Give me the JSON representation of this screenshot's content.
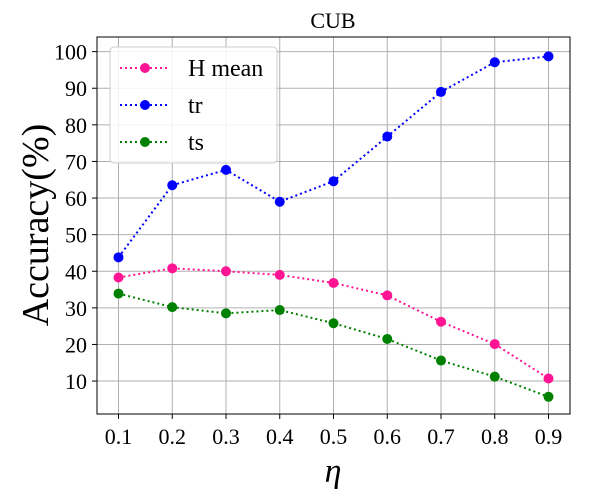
{
  "chart_data": {
    "type": "line",
    "title": "CUB",
    "xlabel": "η",
    "ylabel": "Accuracy(%)",
    "x": [
      0.1,
      0.2,
      0.3,
      0.4,
      0.5,
      0.6,
      0.7,
      0.8,
      0.9
    ],
    "x_tick_labels": [
      "0.1",
      "0.2",
      "0.3",
      "0.4",
      "0.5",
      "0.6",
      "0.7",
      "0.8",
      "0.9"
    ],
    "y_ticks": [
      10,
      20,
      30,
      40,
      50,
      60,
      70,
      80,
      90,
      100
    ],
    "xlim": [
      0.06,
      0.94
    ],
    "ylim": [
      1,
      104
    ],
    "grid": true,
    "legend_position": "top-left",
    "series": [
      {
        "name": "H mean",
        "color": "#ff1493",
        "values": [
          38.3,
          40.8,
          40.0,
          39.0,
          36.8,
          33.4,
          26.2,
          20.1,
          10.7
        ]
      },
      {
        "name": "tr",
        "color": "#0000ff",
        "values": [
          43.8,
          63.5,
          67.7,
          59.0,
          64.6,
          76.8,
          89.0,
          97.1,
          98.7
        ]
      },
      {
        "name": "ts",
        "color": "#008000",
        "values": [
          33.9,
          30.2,
          28.5,
          29.4,
          25.8,
          21.5,
          15.6,
          11.2,
          5.7
        ]
      }
    ]
  }
}
